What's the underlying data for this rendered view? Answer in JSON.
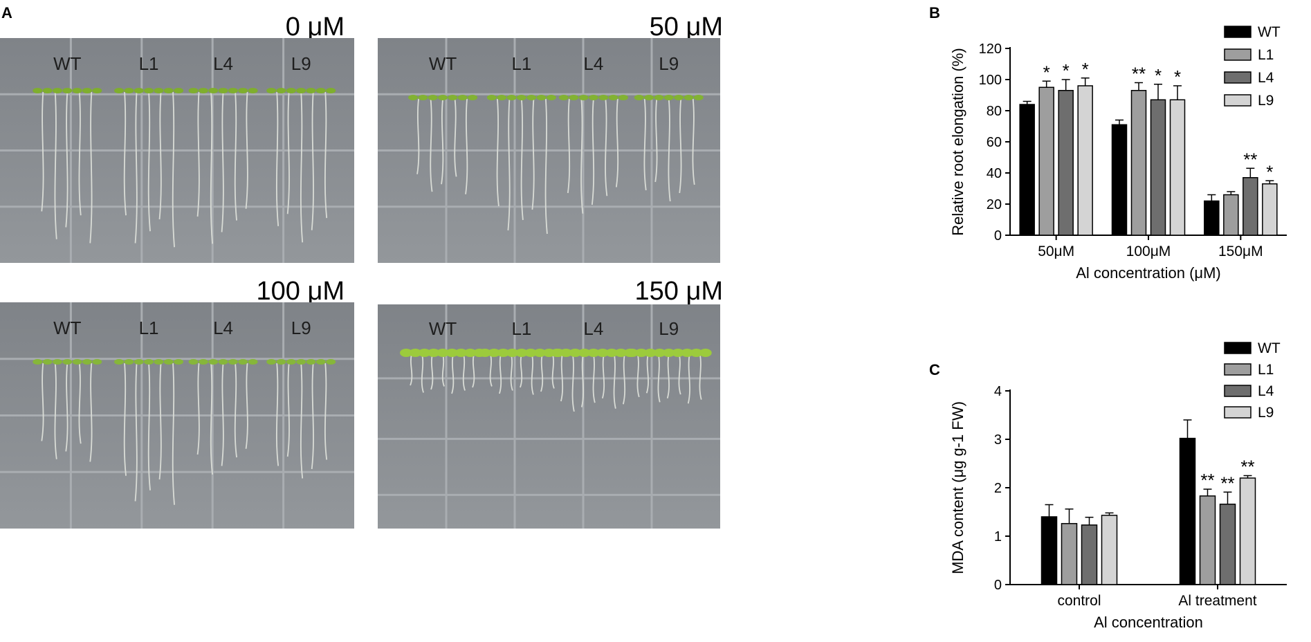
{
  "panels": {
    "a_letter": "A",
    "b_letter": "B",
    "c_letter": "C"
  },
  "plates": [
    {
      "title": "0 μM",
      "lines": [
        "WT",
        "L1",
        "L4",
        "L9"
      ],
      "seedling_color": "#7fae2e"
    },
    {
      "title": "50 μM",
      "lines": [
        "WT",
        "L1",
        "L4",
        "L9"
      ],
      "seedling_color": "#82b233"
    },
    {
      "title": "100 μM",
      "lines": [
        "WT",
        "L1",
        "L4",
        "L9"
      ],
      "seedling_color": "#86b63a"
    },
    {
      "title": "150 μM",
      "lines": [
        "WT",
        "L1",
        "L4",
        "L9"
      ],
      "seedling_color": "#9ccb3c"
    }
  ],
  "chart_data": [
    {
      "type": "bar",
      "panel": "B",
      "categories": [
        "50μM",
        "100μM",
        "150μM"
      ],
      "series": [
        {
          "name": "WT",
          "values": [
            84,
            71,
            22
          ],
          "errors": [
            2,
            3,
            4
          ],
          "stars": [
            "",
            "",
            ""
          ],
          "color": "#000000"
        },
        {
          "name": "L1",
          "values": [
            95,
            93,
            26
          ],
          "errors": [
            4,
            5,
            2
          ],
          "stars": [
            "*",
            "**",
            ""
          ],
          "color": "#9e9e9e"
        },
        {
          "name": "L4",
          "values": [
            93,
            87,
            37
          ],
          "errors": [
            7,
            10,
            6
          ],
          "stars": [
            "*",
            "*",
            "**"
          ],
          "color": "#6e6e6e"
        },
        {
          "name": "L9",
          "values": [
            96,
            87,
            33
          ],
          "errors": [
            5,
            9,
            2
          ],
          "stars": [
            "*",
            "*",
            "*"
          ],
          "color": "#d4d4d4"
        }
      ],
      "xlabel": "Al concentration (μM)",
      "ylabel": "Relative root elongation (%)",
      "ylim": [
        0,
        120
      ],
      "yticks": [
        0,
        20,
        40,
        60,
        80,
        100,
        120
      ],
      "legend": "top-right"
    },
    {
      "type": "bar",
      "panel": "C",
      "categories": [
        "control",
        "Al treatment"
      ],
      "series": [
        {
          "name": "WT",
          "values": [
            1.4,
            3.02
          ],
          "errors": [
            0.25,
            0.38
          ],
          "stars": [
            "",
            ""
          ],
          "color": "#000000"
        },
        {
          "name": "L1",
          "values": [
            1.26,
            1.83
          ],
          "errors": [
            0.3,
            0.14
          ],
          "stars": [
            "",
            "**"
          ],
          "color": "#9e9e9e"
        },
        {
          "name": "L4",
          "values": [
            1.23,
            1.66
          ],
          "errors": [
            0.16,
            0.25
          ],
          "stars": [
            "",
            "**"
          ],
          "color": "#6e6e6e"
        },
        {
          "name": "L9",
          "values": [
            1.43,
            2.2
          ],
          "errors": [
            0.05,
            0.05
          ],
          "stars": [
            "",
            "**"
          ],
          "color": "#d4d4d4"
        }
      ],
      "xlabel": "Al concentration",
      "ylabel": "MDA content (μg g-1 FW)",
      "ylim": [
        0,
        4
      ],
      "yticks": [
        0,
        1,
        2,
        3,
        4
      ],
      "legend": "top-right"
    }
  ]
}
